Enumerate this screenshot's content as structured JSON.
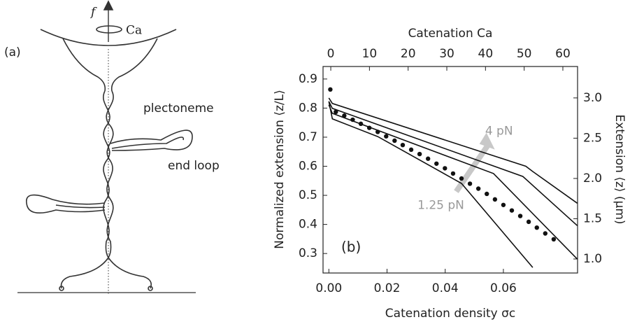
{
  "panel_a": {
    "label": "(a)",
    "force": "f",
    "rotation": "Ca",
    "annotations": [
      "plectoneme",
      "end loop"
    ]
  },
  "chart_data": {
    "type": "line",
    "panel_label": "(b)",
    "xlabel": "Catenation density σc",
    "ylabel": "Normalized extension ⟨z/L⟩",
    "y2label": "Extension ⟨z⟩ (μm)",
    "top_xlabel": "Catenation Ca",
    "xlim": [
      -0.002,
      0.0855
    ],
    "xticks": [
      {
        "value": 0,
        "label": "0.00"
      },
      {
        "value": 0.02,
        "label": "0.02"
      },
      {
        "value": 0.04,
        "label": "0.04"
      },
      {
        "value": 0.06,
        "label": "0.06"
      }
    ],
    "top_xlim": [
      -2,
      63.8
    ],
    "top_xticks": [
      0,
      10,
      20,
      30,
      40,
      50,
      60
    ],
    "ylim": [
      0.233,
      0.943
    ],
    "yticks": [
      0.3,
      0.4,
      0.5,
      0.6,
      0.7,
      0.8,
      0.9
    ],
    "y2lim": [
      0.826,
      3.39
    ],
    "y2ticks": [
      {
        "value": 1,
        "label": "1.0"
      },
      {
        "value": 1.5,
        "label": "1.5"
      },
      {
        "value": 2,
        "label": "2.0"
      },
      {
        "value": 2.5,
        "label": "2.5"
      },
      {
        "value": 3,
        "label": "3.0"
      }
    ],
    "series": [
      {
        "color": "#111111",
        "marker": "line",
        "x": [
          0,
          0.0012,
          0.0677,
          0.0701,
          0.0854
        ],
        "values": [
          0.835,
          0.816,
          0.6,
          0.582,
          0.473
        ]
      },
      {
        "color": "#111111",
        "marker": "line",
        "x": [
          0,
          0.0012,
          0.0667,
          0.0854
        ],
        "values": [
          0.823,
          0.799,
          0.565,
          0.396
        ]
      },
      {
        "color": "#111111",
        "marker": "line",
        "x": [
          0,
          0.0012,
          0.0566,
          0.0854
        ],
        "values": [
          0.811,
          0.782,
          0.575,
          0.281
        ]
      },
      {
        "color": "#111111",
        "marker": "line",
        "x": [
          0,
          0.0012,
          0.0168,
          0.0456,
          0.0701
        ],
        "values": [
          0.823,
          0.763,
          0.702,
          0.541,
          0.252
        ]
      },
      {
        "color": "#111111",
        "marker": "dot",
        "x": [
          0.0005,
          0.0024,
          0.0053,
          0.0082,
          0.011,
          0.0139,
          0.0168,
          0.0197,
          0.0226,
          0.0254,
          0.0283,
          0.0312,
          0.0341,
          0.037,
          0.0399,
          0.0427,
          0.0456,
          0.0485,
          0.0514,
          0.0543,
          0.0571,
          0.06,
          0.0629,
          0.0658,
          0.0687,
          0.0715,
          0.0744,
          0.0773
        ],
        "values": [
          0.864,
          0.787,
          0.774,
          0.76,
          0.746,
          0.732,
          0.718,
          0.703,
          0.688,
          0.673,
          0.657,
          0.642,
          0.626,
          0.609,
          0.593,
          0.575,
          0.558,
          0.54,
          0.523,
          0.505,
          0.486,
          0.467,
          0.448,
          0.429,
          0.409,
          0.389,
          0.369,
          0.349
        ]
      }
    ],
    "annotations": [
      {
        "text": "4 pN",
        "x": 0.0585,
        "y": 0.72
      },
      {
        "text": "1.25 pN",
        "x": 0.0385,
        "y": 0.465
      }
    ],
    "arrow": {
      "color": "#c8c8c8"
    }
  }
}
